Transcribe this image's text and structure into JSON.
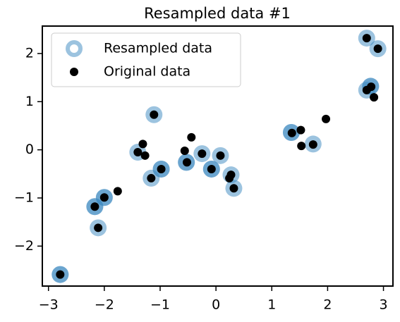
{
  "chart_data": {
    "type": "scatter",
    "title": "Resampled data #1",
    "xlim": [
      -3.11,
      3.17
    ],
    "ylim": [
      -2.83,
      2.57
    ],
    "xticks": [
      {
        "value": -3,
        "label": "−3"
      },
      {
        "value": -2,
        "label": "−2"
      },
      {
        "value": -1,
        "label": "−1"
      },
      0,
      1,
      2,
      3
    ],
    "yticks": [
      {
        "value": -2,
        "label": "−2"
      },
      {
        "value": -1,
        "label": "−1"
      },
      0,
      1,
      2
    ],
    "legend": "upper left",
    "series": [
      {
        "name": "Resampled data",
        "color": "#3a87c0",
        "x": [
          -2.79,
          -2.79,
          -2.17,
          -2.17,
          -2.11,
          -2.0,
          -2.0,
          -1.4,
          -1.16,
          -1.11,
          -0.98,
          -0.98,
          -0.53,
          -0.53,
          -0.25,
          -0.08,
          -0.08,
          0.08,
          0.27,
          0.32,
          1.35,
          1.35,
          1.74,
          2.7,
          2.9,
          2.7,
          2.77,
          2.77
        ],
        "y": [
          -2.59,
          -2.59,
          -1.18,
          -1.18,
          -1.62,
          -0.99,
          -0.99,
          -0.05,
          -0.59,
          0.73,
          -0.4,
          -0.4,
          -0.26,
          -0.26,
          -0.08,
          -0.4,
          -0.4,
          -0.12,
          -0.52,
          -0.8,
          0.36,
          0.36,
          0.12,
          2.32,
          2.1,
          1.24,
          1.32,
          1.32
        ]
      },
      {
        "name": "Original data",
        "color": "#000000",
        "x": [
          -2.79,
          -2.17,
          -2.11,
          -2.0,
          -1.76,
          -1.4,
          -1.31,
          -1.27,
          -1.16,
          -1.11,
          -0.98,
          -0.56,
          -0.52,
          -0.44,
          -0.25,
          -0.08,
          0.08,
          0.24,
          0.27,
          0.32,
          1.36,
          1.52,
          1.53,
          1.74,
          1.97,
          2.7,
          2.7,
          2.78,
          2.83,
          2.9
        ],
        "y": [
          -2.59,
          -1.18,
          -1.62,
          -0.99,
          -0.86,
          -0.05,
          0.12,
          -0.12,
          -0.59,
          0.73,
          -0.4,
          -0.02,
          -0.26,
          0.26,
          -0.08,
          -0.4,
          -0.12,
          -0.59,
          -0.52,
          -0.8,
          0.35,
          0.41,
          0.08,
          0.11,
          0.64,
          2.32,
          1.24,
          1.31,
          1.09,
          2.1
        ]
      }
    ]
  }
}
